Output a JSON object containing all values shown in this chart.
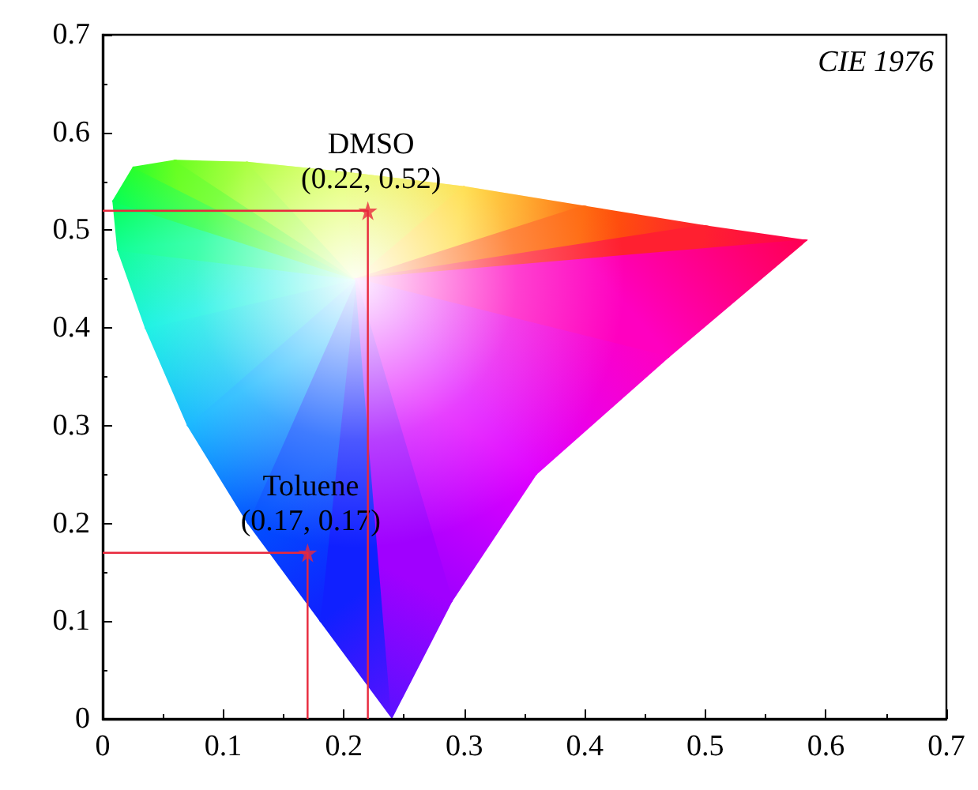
{
  "chart_data": {
    "type": "line",
    "xlim": [
      0,
      0.7
    ],
    "ylim": [
      0,
      0.7
    ],
    "xticks": [
      0,
      0.1,
      0.2,
      0.3,
      0.4,
      0.5,
      0.6,
      0.7
    ],
    "yticks": [
      0,
      0.1,
      0.2,
      0.3,
      0.4,
      0.5,
      0.6,
      0.7
    ],
    "grid": false,
    "series": [
      {
        "color": "#e8283c",
        "x": [
          0,
          0.22,
          0.22
        ],
        "values": [
          0.52,
          0.52,
          0
        ]
      },
      {
        "color": "#e8283c",
        "x": [
          0,
          0.17,
          0.17
        ],
        "values": [
          0.17,
          0.17,
          0
        ]
      },
      {
        "type": "scatter",
        "color": "#e8283c",
        "marker": "star",
        "x": [
          0.22,
          0.17
        ],
        "values": [
          0.52,
          0.17
        ]
      }
    ],
    "annotations": [
      "CIE 1976",
      {
        "text": "DMSO\n(0.22, 0.52)",
        "x": 0.22,
        "y": 0.52
      },
      {
        "text": "Toluene\n(0.17, 0.17)",
        "x": 0.17,
        "y": 0.17
      }
    ]
  }
}
